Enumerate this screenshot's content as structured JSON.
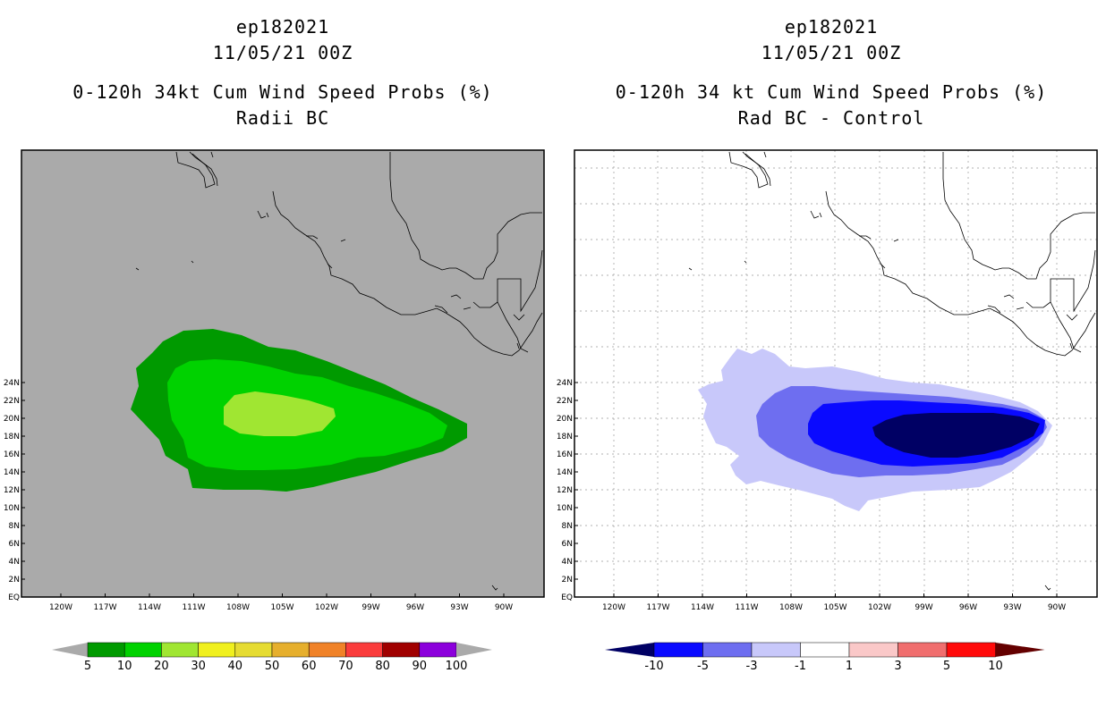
{
  "left_panel": {
    "storm_id": "ep182021",
    "date": "11/05/21 00Z",
    "product": "0-120h 34kt Cum Wind Speed Probs (%)",
    "subtitle": "Radii BC",
    "colorbar": {
      "labels": [
        "5",
        "10",
        "20",
        "30",
        "40",
        "50",
        "60",
        "70",
        "80",
        "90",
        "100"
      ],
      "colors": [
        "#009a00",
        "#00d200",
        "#a0e632",
        "#f0f01e",
        "#e6dc32",
        "#e6af2d",
        "#f08228",
        "#fa3c3c",
        "#a00000",
        "#8c00dc",
        "#a0a0a0"
      ]
    }
  },
  "right_panel": {
    "storm_id": "ep182021",
    "date": "11/05/21 00Z",
    "product": "0-120h 34 kt Cum Wind Speed Probs (%)",
    "subtitle": "Rad BC - Control",
    "colorbar": {
      "labels": [
        "-10",
        "-5",
        "-3",
        "-1",
        "1",
        "3",
        "5",
        "10"
      ],
      "colors": [
        "#000064",
        "#0a0aff",
        "#6e6ef0",
        "#c8c8fa",
        "#ffffff",
        "#fac8c8",
        "#f06e6e",
        "#ff0a0a",
        "#640000"
      ]
    }
  },
  "axes": {
    "lat_labels": [
      "EQ",
      "2N",
      "4N",
      "6N",
      "8N",
      "10N",
      "12N",
      "14N",
      "16N",
      "18N",
      "20N",
      "22N",
      "24N"
    ],
    "lon_labels": [
      "120W",
      "117W",
      "114W",
      "111W",
      "108W",
      "105W",
      "102W",
      "99W",
      "96W",
      "93W",
      "90W"
    ]
  },
  "colors": {
    "land_fill_left": "#aaaaaa",
    "prob_5": "#009a00",
    "prob_10": "#00d200",
    "prob_20": "#a0e632",
    "diff_m1": "#c8c8fa",
    "diff_m3": "#6e6ef0",
    "diff_m5": "#0a0aff",
    "diff_m10": "#000064"
  }
}
